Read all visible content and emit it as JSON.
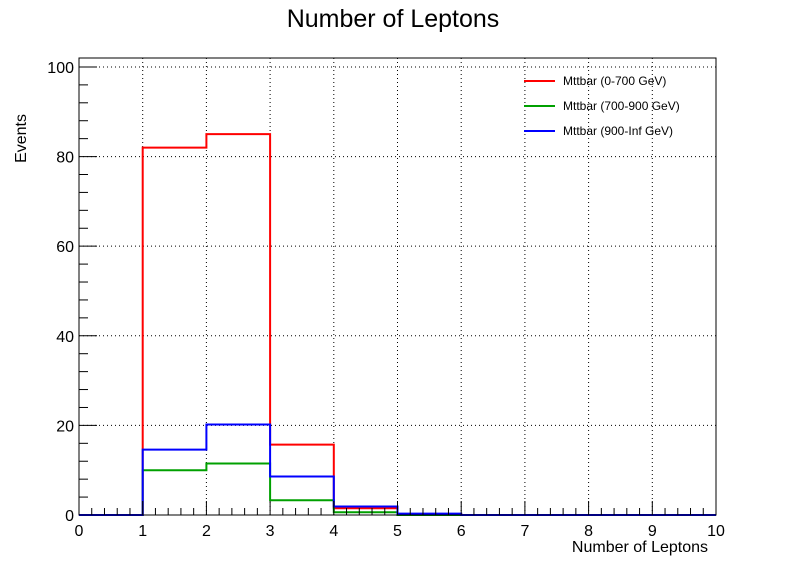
{
  "chart_data": {
    "type": "step",
    "title": "Number of Leptons",
    "xlabel": "Number of Leptons",
    "ylabel": "Events",
    "xlim": [
      0,
      10
    ],
    "ylim": [
      0,
      102
    ],
    "x_ticks": [
      0,
      1,
      2,
      3,
      4,
      5,
      6,
      7,
      8,
      9,
      10
    ],
    "y_ticks": [
      0,
      20,
      40,
      60,
      80,
      100
    ],
    "grid": true,
    "legend_position": "top-right",
    "bin_edges": [
      0,
      1,
      2,
      3,
      4,
      5,
      6,
      7,
      8,
      9,
      10
    ],
    "series": [
      {
        "name": "Mttbar (0-700 GeV)",
        "color": "#ff0000",
        "values": [
          0,
          82,
          85,
          15.7,
          1.5,
          0.2,
          0,
          0,
          0,
          0
        ]
      },
      {
        "name": "Mttbar (700-900 GeV)",
        "color": "#00a000",
        "values": [
          0,
          10,
          11.5,
          3.3,
          0.6,
          0,
          0,
          0,
          0,
          0
        ]
      },
      {
        "name": "Mttbar (900-Inf GeV)",
        "color": "#0000ff",
        "values": [
          0,
          14.6,
          20.2,
          8.6,
          1.9,
          0.3,
          0,
          0,
          0,
          0
        ]
      }
    ]
  }
}
